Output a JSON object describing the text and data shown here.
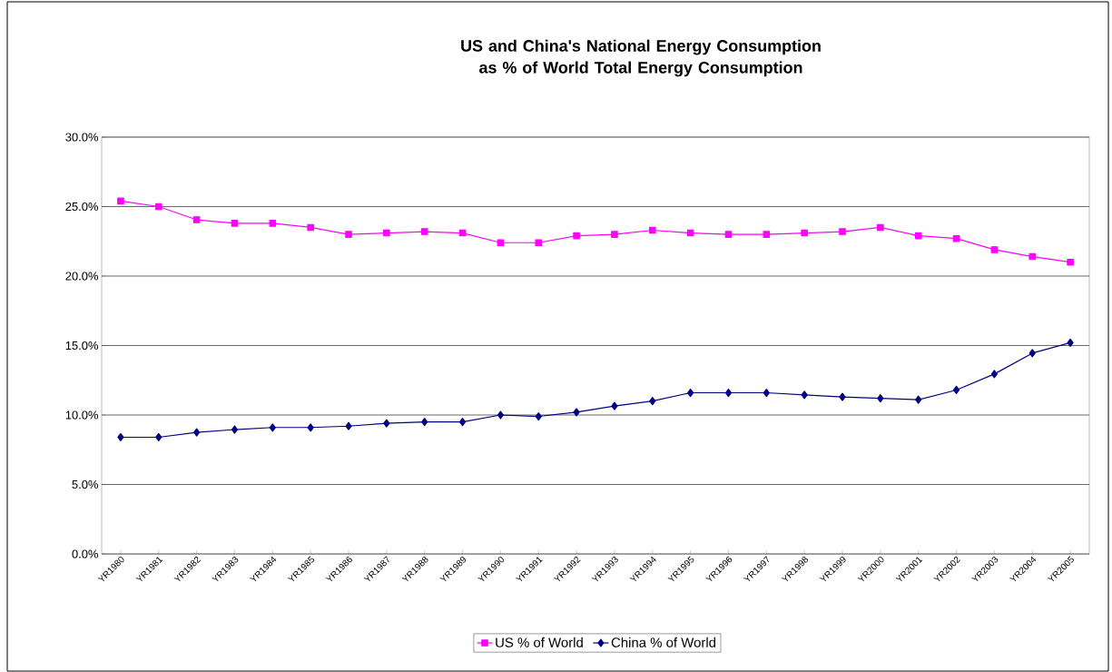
{
  "chart_data": {
    "type": "line",
    "title": "US and China's National Energy Consumption as % of World Total Energy Consumption",
    "categories": [
      "YR1980",
      "YR1981",
      "YR1982",
      "YR1983",
      "YR1984",
      "YR1985",
      "YR1986",
      "YR1987",
      "YR1988",
      "YR1989",
      "YR1990",
      "YR1991",
      "YR1992",
      "YR1993",
      "YR1994",
      "YR1995",
      "YR1996",
      "YR1997",
      "YR1998",
      "YR1999",
      "YR2000",
      "YR2001",
      "YR2002",
      "YR2003",
      "YR2004",
      "YR2005"
    ],
    "series": [
      {
        "name": "US % of World",
        "color": "#ff00ff",
        "marker": "square",
        "values": [
          25.4,
          25.0,
          24.05,
          23.8,
          23.8,
          23.5,
          23.0,
          23.1,
          23.2,
          23.1,
          22.4,
          22.4,
          22.9,
          23.0,
          23.3,
          23.1,
          23.0,
          23.0,
          23.1,
          23.2,
          23.5,
          22.9,
          22.7,
          21.9,
          21.4,
          21.0
        ]
      },
      {
        "name": "China % of World",
        "color": "#000080",
        "marker": "diamond",
        "values": [
          8.4,
          8.4,
          8.75,
          8.95,
          9.1,
          9.1,
          9.2,
          9.4,
          9.5,
          9.5,
          10.0,
          9.9,
          10.2,
          10.65,
          11.0,
          11.6,
          11.6,
          11.6,
          11.45,
          11.3,
          11.2,
          11.1,
          11.8,
          12.95,
          14.45,
          15.2
        ]
      }
    ],
    "ylim": [
      0,
      30
    ],
    "yticks": [
      {
        "value": 0,
        "label": "0.0%"
      },
      {
        "value": 5,
        "label": "5.0%"
      },
      {
        "value": 10,
        "label": "10.0%"
      },
      {
        "value": 15,
        "label": "15.0%"
      },
      {
        "value": 20,
        "label": "20.0%"
      },
      {
        "value": 25,
        "label": "25.0%"
      },
      {
        "value": 30,
        "label": "30.0%"
      }
    ],
    "grid": "y",
    "legend": "bottom",
    "line_style": "solid"
  }
}
